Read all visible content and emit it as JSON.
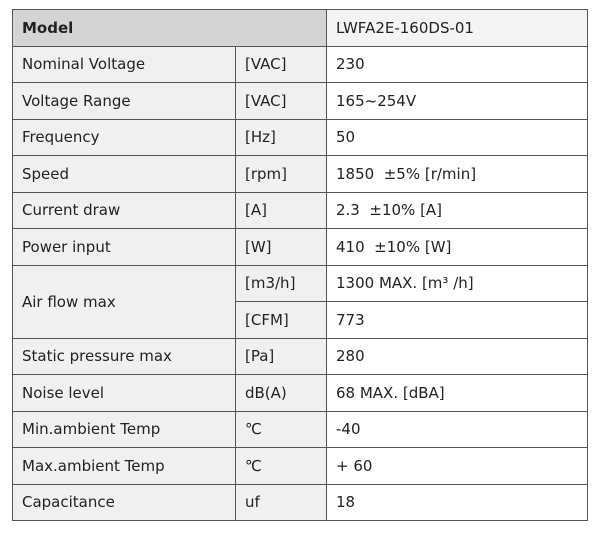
{
  "header": {
    "label": "Model",
    "value": "LWFA2E-160DS-01"
  },
  "rows": [
    [
      "Nominal Voltage",
      "[VAC]",
      "230"
    ],
    [
      "Voltage Range",
      "[VAC]",
      "165~254V"
    ],
    [
      "Frequency",
      "[Hz]",
      "50"
    ],
    [
      "Speed",
      "[rpm]",
      "1850  ±5% [r/min]"
    ],
    [
      "Current draw",
      "[A]",
      "2.3  ±10% [A]"
    ],
    [
      "Power input",
      "[W]",
      "410  ±10% [W]"
    ],
    [
      "Air flow max",
      "[m3/h]",
      "1300 MAX. [m³ /h]"
    ],
    [
      "[CFM]",
      "773"
    ],
    [
      "Static pressure max",
      "[Pa]",
      "280"
    ],
    [
      "Noise level",
      "dB(A)",
      "68 MAX. [dBA]"
    ],
    [
      "Min.ambient Temp",
      "℃",
      "-40"
    ],
    [
      "Max.ambient Temp",
      "℃",
      "+ 60"
    ],
    [
      "Capacitance",
      "uf",
      "18"
    ]
  ]
}
